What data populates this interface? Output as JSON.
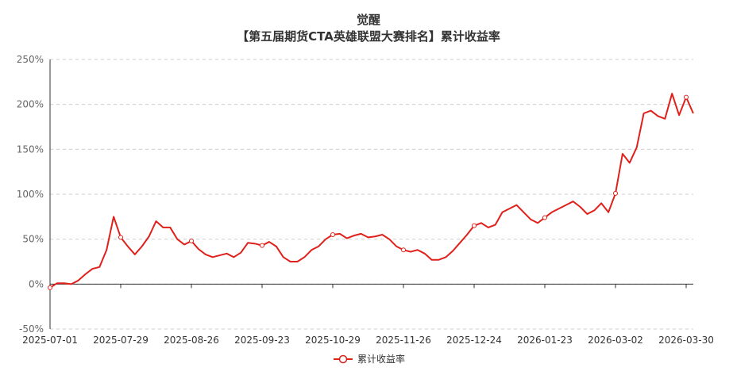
{
  "title": "觉醒",
  "chart_data": {
    "type": "line",
    "title": "【第五届期货CTA英雄联盟大赛排名】累计收益率",
    "categories": [
      "2025-07-01",
      null,
      null,
      null,
      null,
      null,
      null,
      null,
      null,
      null,
      "2025-07-29",
      null,
      null,
      null,
      null,
      null,
      null,
      null,
      null,
      null,
      "2025-08-26",
      null,
      null,
      null,
      null,
      null,
      null,
      null,
      null,
      null,
      "2025-09-23",
      null,
      null,
      null,
      null,
      null,
      null,
      null,
      null,
      null,
      "2025-10-29",
      null,
      null,
      null,
      null,
      null,
      null,
      null,
      null,
      null,
      "2025-11-26",
      null,
      null,
      null,
      null,
      null,
      null,
      null,
      null,
      null,
      "2025-12-24",
      null,
      null,
      null,
      null,
      null,
      null,
      null,
      null,
      null,
      "2026-01-23",
      null,
      null,
      null,
      null,
      null,
      null,
      null,
      null,
      null,
      "2026-03-02",
      null,
      null,
      null,
      null,
      null,
      null,
      null,
      null,
      null,
      "2026-03-30",
      null
    ],
    "series": [
      {
        "name": "累计收益率",
        "color": "#e0201a",
        "values": [
          -4,
          1,
          1,
          0,
          4,
          11,
          17,
          19,
          38,
          75,
          52,
          42,
          33,
          42,
          53,
          70,
          63,
          63,
          50,
          44,
          48,
          39,
          33,
          30,
          32,
          34,
          30,
          35,
          46,
          45,
          43,
          47,
          42,
          30,
          25,
          25,
          30,
          38,
          42,
          50,
          55,
          56,
          51,
          54,
          56,
          52,
          53,
          55,
          50,
          42,
          38,
          36,
          38,
          34,
          27,
          27,
          30,
          37,
          46,
          55,
          65,
          68,
          63,
          66,
          80,
          84,
          88,
          80,
          72,
          68,
          74,
          80,
          84,
          88,
          92,
          86,
          78,
          82,
          90,
          80,
          101,
          145,
          135,
          152,
          190,
          193,
          187,
          184,
          212,
          188,
          208,
          190
        ]
      }
    ],
    "ylim": [
      -50,
      250
    ],
    "yticks": [
      {
        "value": -50,
        "label": "-50%"
      },
      {
        "value": 0,
        "label": "0%"
      },
      {
        "value": 50,
        "label": "50%"
      },
      {
        "value": 100,
        "label": "100%"
      },
      {
        "value": 150,
        "label": "150%"
      },
      {
        "value": 200,
        "label": "200%"
      },
      {
        "value": 250,
        "label": "250%"
      }
    ],
    "grid": true
  }
}
